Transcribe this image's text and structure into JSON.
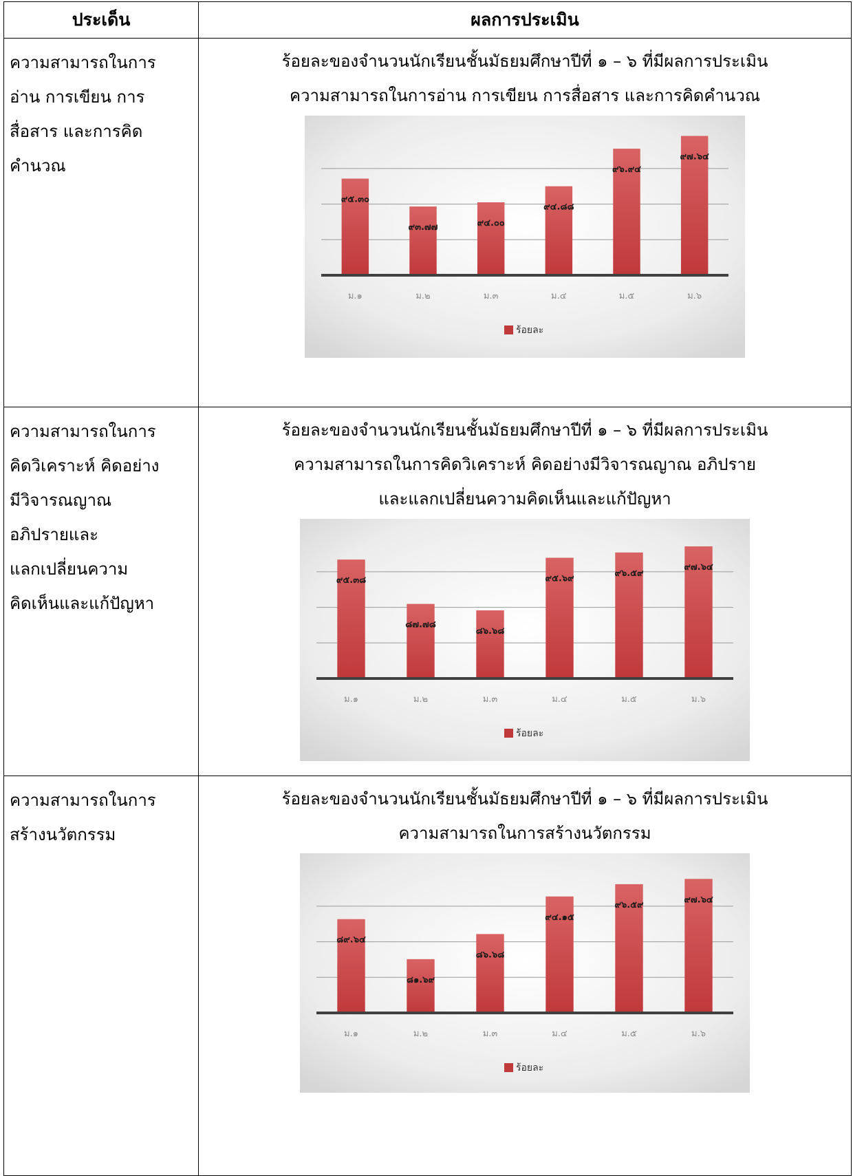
{
  "table": {
    "headers": [
      "ประเด็น",
      "ผลการประเมิน"
    ],
    "rows": [
      {
        "topic_lines": [
          "ความสามารถในการ",
          "อ่าน การเขียน การ",
          "สื่อสาร และการคิด",
          "คำนวณ"
        ],
        "title_lines": [
          "ร้อยละของจำนวนนักเรียนชั้นมัธยมศึกษาปีที่ ๑ – ๖ ที่มีผลการประเมิน",
          "ความสามารถในการอ่าน การเขียน การสื่อสาร และการคิดคำนวณ"
        ]
      },
      {
        "topic_lines": [
          "ความสามารถในการ",
          "คิดวิเคราะห์ คิดอย่าง",
          "มีวิจารณญาณ",
          "อภิปรายและ",
          "แลกเปลี่ยนความ",
          "คิดเห็นและแก้ปัญหา"
        ],
        "title_lines": [
          "ร้อยละของจำนวนนักเรียนชั้นมัธยมศึกษาปีที่ ๑ – ๖ ที่มีผลการประเมิน",
          "ความสามารถในการคิดวิเคราะห์ คิดอย่างมีวิจารณญาณ อภิปราย",
          "และแลกเปลี่ยนความคิดเห็นและแก้ปัญหา"
        ]
      },
      {
        "topic_lines": [
          "ความสามารถในการ",
          "สร้างนวัตกรรม"
        ],
        "title_lines": [
          "ร้อยละของจำนวนนักเรียนชั้นมัธยมศึกษาปีที่ ๑ – ๖ ที่มีผลการประเมิน",
          "ความสามารถในการสร้างนวัตกรรม"
        ]
      }
    ]
  },
  "colors": {
    "bar": "#c0393b",
    "bar_light": "#d86263",
    "axis": "#404040"
  },
  "chart_data": [
    {
      "type": "bar",
      "categories": [
        "ม.๑",
        "ม.๒",
        "ม.๓",
        "ม.๔",
        "ม.๕",
        "ม.๖"
      ],
      "series": [
        {
          "name": "ร้อยละ",
          "values": [
            95.3,
            93.77,
            94.0,
            94.88,
            96.94,
            97.64
          ],
          "labels": [
            "๙๕.๓๐",
            "๙๓.๗๗",
            "๙๔.๐๐",
            "๙๔.๘๘",
            "๙๖.๙๔",
            "๙๗.๖๔"
          ]
        }
      ],
      "ylim": [
        90,
        98
      ],
      "legend": "bottom"
    },
    {
      "type": "bar",
      "categories": [
        "ม.๑",
        "ม.๒",
        "ม.๓",
        "ม.๔",
        "ม.๕",
        "ม.๖"
      ],
      "series": [
        {
          "name": "ร้อยละ",
          "values": [
            95.38,
            87.78,
            86.68,
            95.69,
            96.59,
            97.64
          ],
          "labels": [
            "๙๕.๓๘",
            "๘๗.๗๘",
            "๘๖.๖๘",
            "๙๕.๖๙",
            "๙๖.๕๙",
            "๙๗.๖๔"
          ]
        }
      ],
      "ylim": [
        75,
        100
      ],
      "legend": "bottom"
    },
    {
      "type": "bar",
      "categories": [
        "ม.๑",
        "ม.๒",
        "ม.๓",
        "ม.๔",
        "ม.๕",
        "ม.๖"
      ],
      "series": [
        {
          "name": "ร้อยละ",
          "values": [
            89.64,
            81.69,
            86.68,
            94.15,
            96.59,
            97.64
          ],
          "labels": [
            "๘๙.๖๔",
            "๘๑.๖๙",
            "๘๖.๖๘",
            "๙๔.๑๕",
            "๙๖.๕๙",
            "๙๗.๖๔"
          ]
        }
      ],
      "ylim": [
        71,
        100
      ],
      "legend": "bottom"
    }
  ]
}
